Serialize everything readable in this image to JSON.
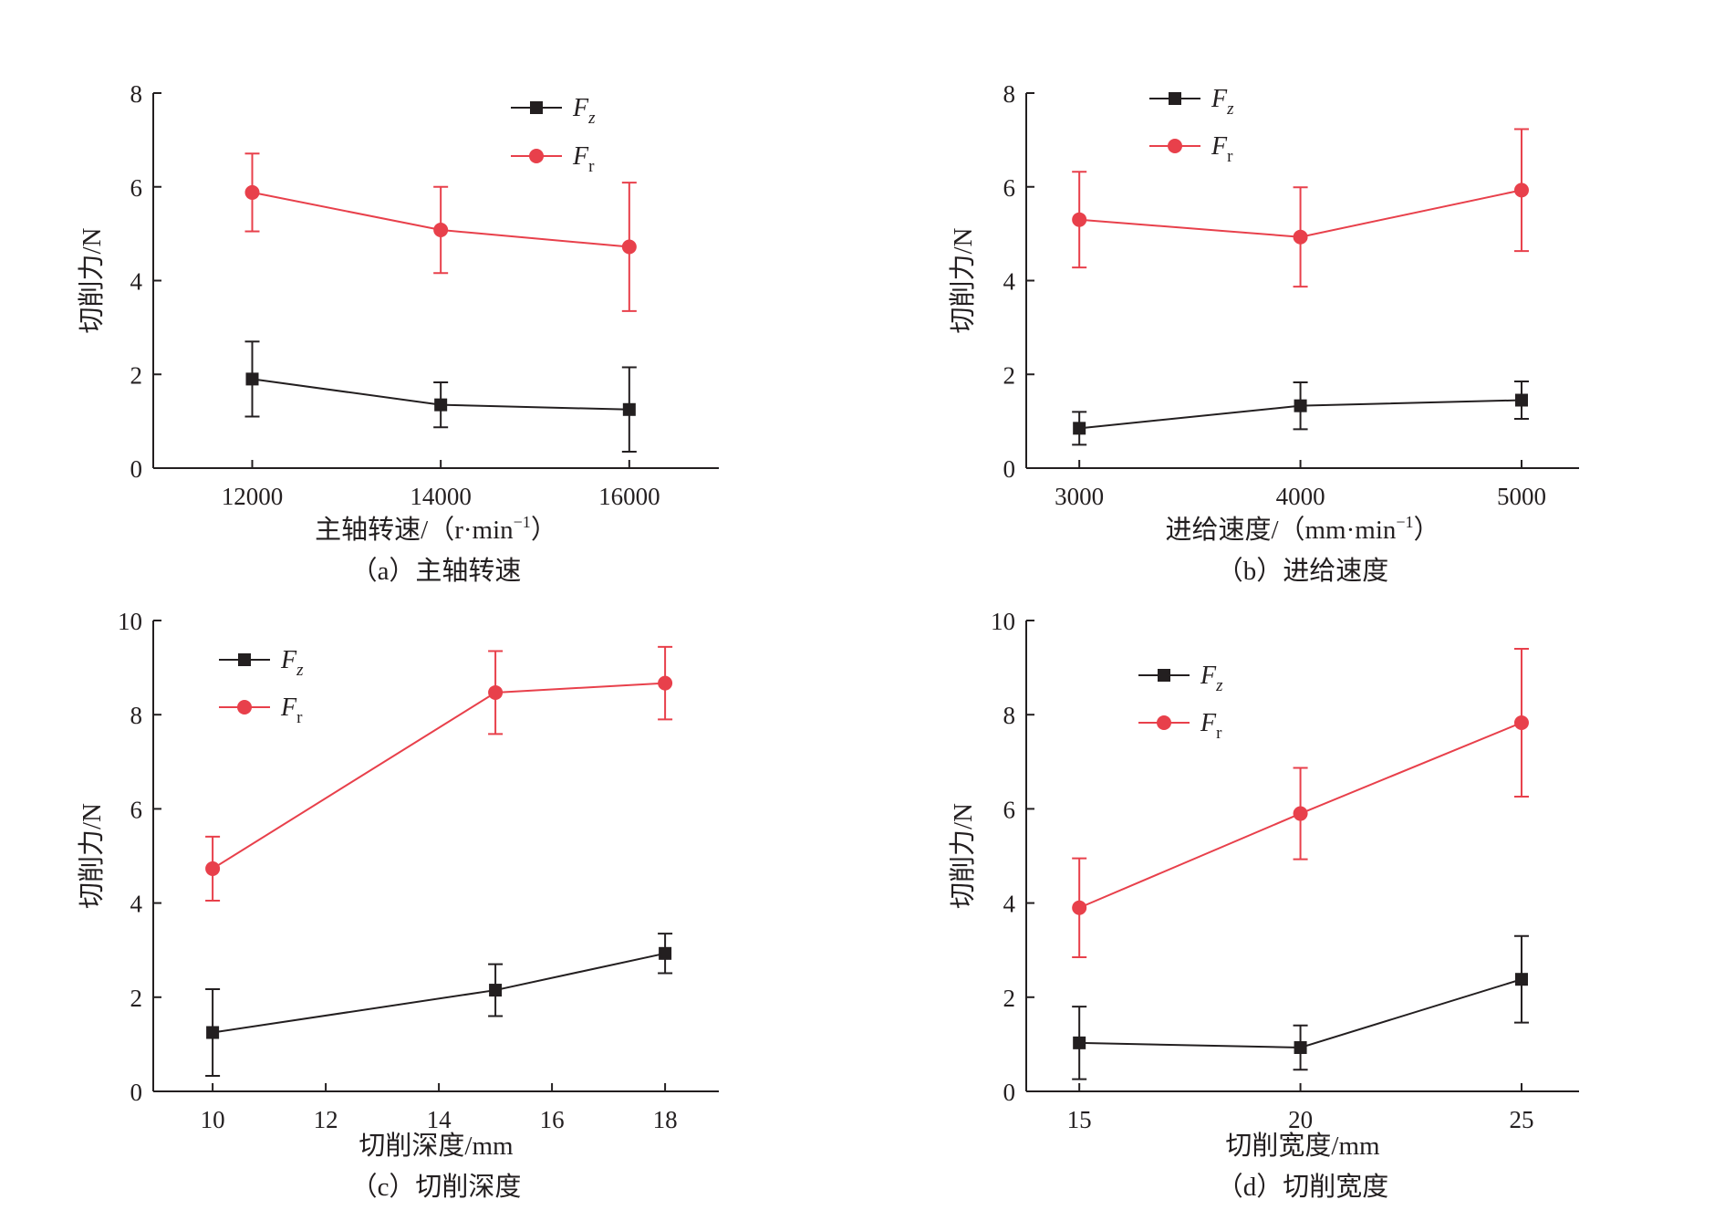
{
  "colors": {
    "Fz": "#231f20",
    "Fr": "#e8404b",
    "axis": "#231f20"
  },
  "chart_data": [
    {
      "type": "line",
      "caption": "（a）主轴转速",
      "xlabel": "主轴转速/（r·min",
      "xlabel_sup": "−1",
      "xlabel_end": "）",
      "ylabel": "切削力/N",
      "xlim": [
        10950,
        16950
      ],
      "ylim": [
        0,
        8
      ],
      "xticks": [
        12000,
        14000,
        16000
      ],
      "yticks": [
        0,
        2,
        4,
        6,
        8
      ],
      "legend_position": "top-center",
      "series": [
        {
          "name": "Fz",
          "name_main": "F",
          "name_sub": "z",
          "marker": "square",
          "x": [
            12000,
            14000,
            16000
          ],
          "y": [
            1.9,
            1.35,
            1.25
          ],
          "err": [
            0.8,
            0.48,
            0.9
          ]
        },
        {
          "name": "Fr",
          "name_main": "F",
          "name_sub": "r",
          "marker": "circle",
          "x": [
            12000,
            14000,
            16000
          ],
          "y": [
            5.88,
            5.08,
            4.72
          ],
          "err": [
            0.83,
            0.92,
            1.37
          ]
        }
      ]
    },
    {
      "type": "line",
      "caption": "（b）进给速度",
      "xlabel": "进给速度/（mm·min",
      "xlabel_sup": "−1",
      "xlabel_end": "）",
      "ylabel": "切削力/N",
      "xlim": [
        2760,
        5260
      ],
      "ylim": [
        0,
        8
      ],
      "xticks": [
        3000,
        4000,
        5000
      ],
      "yticks": [
        0,
        2,
        4,
        6,
        8
      ],
      "legend_position": "top-left",
      "series": [
        {
          "name": "Fz",
          "name_main": "F",
          "name_sub": "z",
          "marker": "square",
          "x": [
            3000,
            4000,
            5000
          ],
          "y": [
            0.85,
            1.33,
            1.45
          ],
          "err": [
            0.35,
            0.5,
            0.4
          ]
        },
        {
          "name": "Fr",
          "name_main": "F",
          "name_sub": "r",
          "marker": "circle",
          "x": [
            3000,
            4000,
            5000
          ],
          "y": [
            5.3,
            4.93,
            5.93
          ],
          "err": [
            1.02,
            1.06,
            1.3
          ]
        }
      ]
    },
    {
      "type": "line",
      "caption": "（c）切削深度",
      "xlabel": "切削深度/mm",
      "ylabel": "切削力/N",
      "xlim": [
        8.95,
        18.95
      ],
      "ylim": [
        0,
        10
      ],
      "xticks": [
        10,
        12,
        14,
        16,
        18
      ],
      "yticks": [
        0,
        2,
        4,
        6,
        8,
        10
      ],
      "legend_position": "top-left",
      "series": [
        {
          "name": "Fz",
          "name_main": "F",
          "name_sub": "z",
          "marker": "square",
          "x": [
            10,
            15,
            18
          ],
          "y": [
            1.25,
            2.15,
            2.93
          ],
          "err": [
            0.92,
            0.55,
            0.42
          ]
        },
        {
          "name": "Fr",
          "name_main": "F",
          "name_sub": "r",
          "marker": "circle",
          "x": [
            10,
            15,
            18
          ],
          "y": [
            4.73,
            8.47,
            8.67
          ],
          "err": [
            0.68,
            0.88,
            0.77
          ]
        }
      ]
    },
    {
      "type": "line",
      "caption": "（d）切削宽度",
      "xlabel": "切削宽度/mm",
      "ylabel": "切削力/N",
      "xlim": [
        13.8,
        26.3
      ],
      "ylim": [
        0,
        10
      ],
      "xticks": [
        15,
        20,
        25
      ],
      "yticks": [
        0,
        2,
        4,
        6,
        8,
        10
      ],
      "legend_position": "top-left",
      "series": [
        {
          "name": "Fz",
          "name_main": "F",
          "name_sub": "z",
          "marker": "square",
          "x": [
            15,
            20,
            25
          ],
          "y": [
            1.03,
            0.93,
            2.38
          ],
          "err": [
            0.77,
            0.47,
            0.92
          ]
        },
        {
          "name": "Fr",
          "name_main": "F",
          "name_sub": "r",
          "marker": "circle",
          "x": [
            15,
            20,
            25
          ],
          "y": [
            3.9,
            5.9,
            7.83
          ],
          "err": [
            1.05,
            0.97,
            1.57
          ]
        }
      ]
    }
  ]
}
